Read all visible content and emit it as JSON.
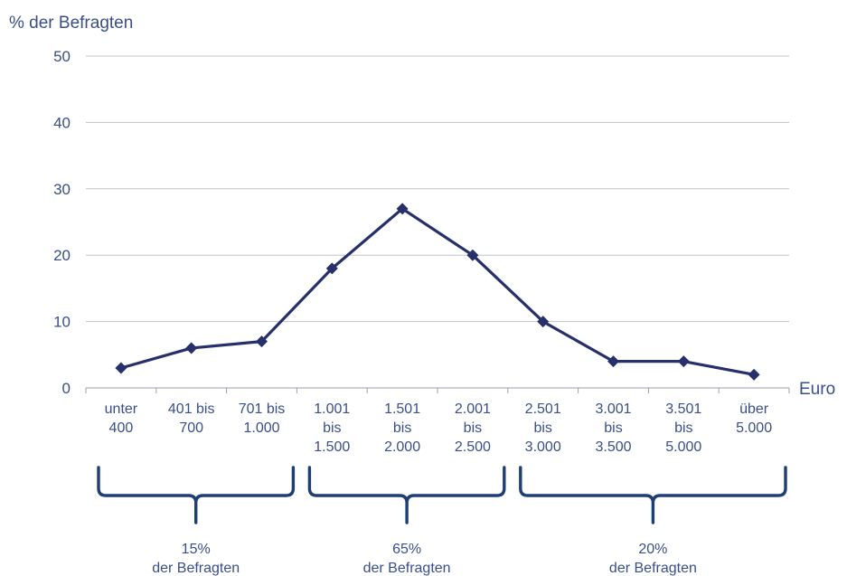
{
  "chart_data": {
    "type": "line",
    "ylabel": "% der Befragten",
    "xlabel": "Euro",
    "ylim": [
      0,
      50
    ],
    "yticks": [
      0,
      10,
      20,
      30,
      40,
      50
    ],
    "grid": true,
    "legend": "none",
    "categories": [
      [
        "unter",
        "400"
      ],
      [
        "401 bis",
        "700"
      ],
      [
        "701 bis",
        "1.000"
      ],
      [
        "1.001",
        "bis",
        "1.500"
      ],
      [
        "1.501",
        "bis",
        "2.000"
      ],
      [
        "2.001",
        "bis",
        "2.500"
      ],
      [
        "2.501",
        "bis",
        "3.000"
      ],
      [
        "3.001",
        "bis",
        "3.500"
      ],
      [
        "3.501",
        "bis",
        "5.000"
      ],
      [
        "über",
        "5.000"
      ]
    ],
    "series": [
      {
        "values": [
          3,
          6,
          7,
          18,
          27,
          20,
          10,
          4,
          4,
          2
        ]
      }
    ],
    "colors": {
      "line": "#27306b",
      "text": "#3a4f8a",
      "brace": "#1e3f73",
      "grid": "#bfc3cc"
    },
    "groups": [
      {
        "from": 0,
        "to": 2,
        "percent": "15%",
        "label": "der Befragten"
      },
      {
        "from": 3,
        "to": 5,
        "percent": "65%",
        "label": "der Befragten"
      },
      {
        "from": 6,
        "to": 9,
        "percent": "20%",
        "label": "der Befragten"
      }
    ]
  }
}
